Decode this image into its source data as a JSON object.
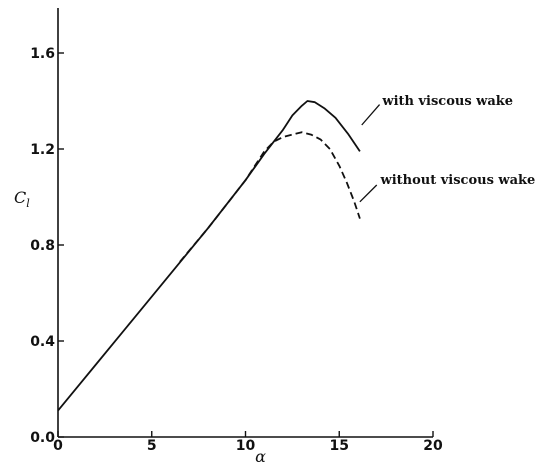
{
  "chart_data": {
    "type": "line",
    "title": "",
    "xlabel": "α",
    "ylabel": "C_l",
    "ylabel_main": "C",
    "ylabel_sub": "l",
    "xlim": [
      0,
      20
    ],
    "ylim": [
      0,
      1.7
    ],
    "xticks": [
      0,
      5,
      10,
      15,
      20
    ],
    "xtick_labels": [
      "0",
      "5",
      "10",
      "15",
      "20"
    ],
    "yticks": [
      0.0,
      0.4,
      0.8,
      1.2,
      1.6
    ],
    "ytick_labels": [
      "0.0",
      "0.4",
      "0.8",
      "1.2",
      "1.6"
    ],
    "grid": false,
    "legend": "none",
    "series": [
      {
        "name": "with viscous wake",
        "style": "solid",
        "x": [
          0,
          2,
          4,
          6,
          8,
          10,
          11,
          12,
          12.5,
          13,
          13.3,
          13.7,
          14.2,
          14.8,
          15.5,
          16.1
        ],
        "y": [
          0.11,
          0.3,
          0.49,
          0.68,
          0.87,
          1.07,
          1.18,
          1.28,
          1.34,
          1.38,
          1.4,
          1.395,
          1.37,
          1.33,
          1.26,
          1.19
        ]
      },
      {
        "name": "without viscous wake",
        "style": "dashed",
        "x": [
          6.5,
          8,
          9,
          10,
          10.5,
          11,
          11.5,
          12,
          12.5,
          13,
          13.5,
          14,
          14.5,
          15,
          15.4,
          15.8,
          16.1
        ],
        "y": [
          0.73,
          0.87,
          0.97,
          1.07,
          1.13,
          1.19,
          1.23,
          1.25,
          1.26,
          1.27,
          1.26,
          1.24,
          1.2,
          1.13,
          1.06,
          0.98,
          0.91
        ]
      }
    ],
    "annotations": [
      {
        "text": "with viscous wake",
        "x": 17.3,
        "y": 1.4
      },
      {
        "text": "without viscous wake",
        "x": 17.2,
        "y": 1.07
      }
    ]
  }
}
